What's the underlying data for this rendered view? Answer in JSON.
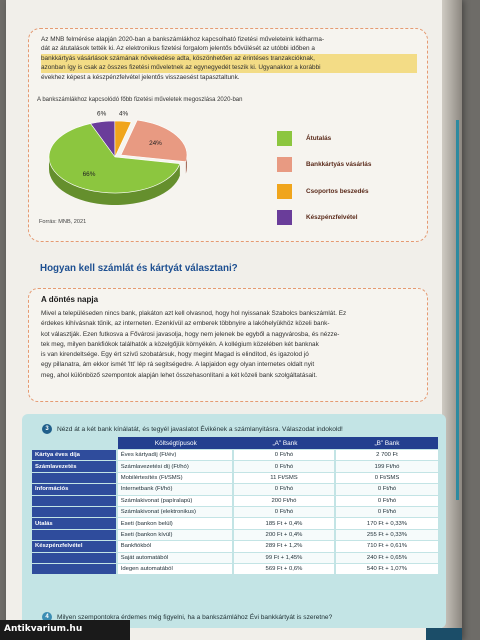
{
  "intro": {
    "lines": [
      "Az MNB felmérése alapján 2020-ban a bankszámlákhoz kapcsolható fizetési műveleteink kétharma-",
      "dát az átutalások tették ki. Az elektronikus fizetési forgalom jelentős bővülését az utóbbi időben a",
      "bankkártyás vásárlások számának növekedése adta, köszönhetően az érintéses tranzakcióknak,",
      "azonban így is csak az összes fizetési műveletnek az egynegyedét teszik ki. Ugyanakkor a korábbi",
      "évekhez képest a készpénzfelvétel jelentős visszaesést tapasztaltunk."
    ]
  },
  "chart_data": {
    "type": "pie",
    "title": "A bankszámlákhoz kapcsolódó főbb fizetési műveletek megoszlása 2020-ban",
    "source": "Forrás: MNB, 2021",
    "slices": [
      {
        "label": "Átutalás",
        "value": 66,
        "value_label": "66%",
        "color": "#8cc63f"
      },
      {
        "label": "Bankkártyás vásárlás",
        "value": 24,
        "value_label": "24%",
        "color": "#e89a82"
      },
      {
        "label": "Csoportos beszedés",
        "value": 4,
        "value_label": "4%",
        "color": "#f0a51c"
      },
      {
        "label": "Készpénzfelvétel",
        "value": 6,
        "value_label": "6%",
        "color": "#6a3d9a"
      }
    ],
    "legend_position": "right",
    "style": "3d"
  },
  "section": {
    "title": "Hogyan kell számlát és kártyát választani?"
  },
  "decision": {
    "title": "A döntés napja",
    "lines": [
      "Mivel a településeden nincs bank, plakáton azt kell olvasnod, hogy hol nyissanak Szabolcs bankszámlát. Ez",
      "érdekes kihívásnak tűnik, az interneten. Ezenkívül az emberek többnyire a lakóhelyükhöz közeli bank-",
      "kot választják. Ezen futkosva a Fővárosi javasolja, hogy nem jelenek be egyből a nagyvárosba, és nézze-",
      "tek meg, milyen bankfiókok találhatók a közelgőjük környékén. A kollégium közelében két banknak",
      "is van kirendeltsége. Egy ért szívű szobatársuk, hogy megint Magad is elindítod, és igazolod jó",
      "egy pillanatra, ám ekkor ismét 'Itt' lép rá segítségedre. A lapjaidon egy olyan internetes oldalt nyit",
      "meg, ahol különböző szempontok alapján lehet összehasonlítani a két közeli bank szolgáltatásait."
    ]
  },
  "task": {
    "number": "3",
    "header": "Nézd át a két bank kínálatát, és tegyél javaslatot Évikének a számlanyitásra. Válaszodat indokold!",
    "table": {
      "col_headers": [
        "Költségtípusok",
        "„A” Bank",
        "„B” Bank"
      ],
      "rows": [
        {
          "cat": "Kártya éves díja",
          "svc": "Éves kártyadíj (Ft/év)",
          "a": "0 Ft/hó",
          "b": "2 700 Ft"
        },
        {
          "cat": "Számlavezetés",
          "svc": "Számlavezetési díj (Ft/hó)",
          "a": "0 Ft/hó",
          "b": "199 Ft/hó"
        },
        {
          "cat": "",
          "svc": "Mobilértesítés (Ft/SMS)",
          "a": "11 Ft/SMS",
          "b": "0 Ft/SMS"
        },
        {
          "cat": "Információs",
          "svc": "Internetbank (Ft/hó)",
          "a": "0 Ft/hó",
          "b": "0 Ft/hó"
        },
        {
          "cat": "",
          "svc": "Számlakivonat (papíralapú)",
          "a": "200 Ft/hó",
          "b": "0 Ft/hó"
        },
        {
          "cat": "",
          "svc": "Számlakivonat (elektronikus)",
          "a": "0 Ft/hó",
          "b": "0 Ft/hó"
        },
        {
          "cat": "Utalás",
          "svc": "Eseti (bankon belül)",
          "a": "185 Ft + 0,4%",
          "b": "170 Ft + 0,33%"
        },
        {
          "cat": "",
          "svc": "Eseti (bankon kívül)",
          "a": "200 Ft + 0,4%",
          "b": "255 Ft + 0,33%"
        },
        {
          "cat": "Készpénzfelvétel",
          "svc": "Bankfiókból",
          "a": "289 Ft + 1,2%",
          "b": "710 Ft + 0,61%"
        },
        {
          "cat": "",
          "svc": "Saját automatából",
          "a": "99 Ft + 1,45%",
          "b": "240 Ft + 0,65%"
        },
        {
          "cat": "",
          "svc": "Idegen automatából",
          "a": "569 Ft + 0,6%",
          "b": "540 Ft + 1,07%"
        }
      ]
    },
    "footer_number": "4",
    "footer": "Milyen szempontokra érdemes még figyelni, ha a bankszámlához Évi bankkártyát is szeretne?"
  },
  "watermark": "Antikvarium.hu"
}
